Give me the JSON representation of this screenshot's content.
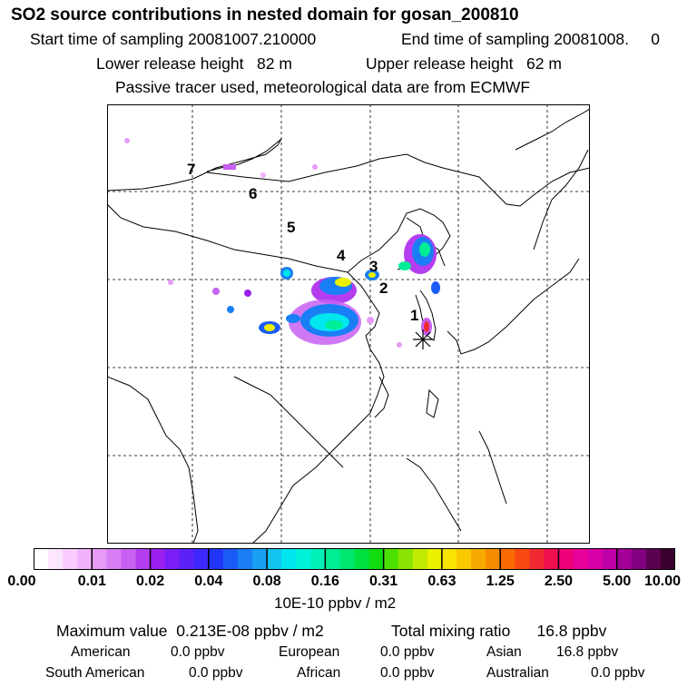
{
  "header": {
    "title": "SO2 source contributions in nested domain for gosan_200810",
    "start_label": "Start time of sampling 20081007.210000",
    "end_label": "End time of sampling 20081008.     0",
    "lower_label": "Lower release height   82 m",
    "upper_label": "Upper release height   62 m",
    "tracer_note": "Passive tracer used, meteorological data are from ECMWF"
  },
  "map": {
    "region_labels": [
      "1",
      "2",
      "3",
      "4",
      "5",
      "6",
      "7"
    ],
    "receptor_marker": "asterisk-marker"
  },
  "colorbar": {
    "ticks": [
      "0.00",
      "0.01",
      "0.02",
      "0.04",
      "0.08",
      "0.16",
      "0.31",
      "0.63",
      "1.25",
      "2.50",
      "5.00",
      "10.00"
    ],
    "unit": "10E-10 ppbv / m2",
    "colors": [
      "#ffffff",
      "#fce6ff",
      "#f8ccfe",
      "#f1b2fd",
      "#e89af9",
      "#d77ef4",
      "#c860f2",
      "#b43eef",
      "#9d1ff0",
      "#7a1ff5",
      "#5a22f8",
      "#3b28fa",
      "#2236fa",
      "#1b5bf7",
      "#1a7ef5",
      "#1aa0f3",
      "#12c4f0",
      "#00e6ee",
      "#00f2d8",
      "#00f0b8",
      "#00ee96",
      "#00e870",
      "#00e040",
      "#10dc10",
      "#4ce000",
      "#88e400",
      "#c0ea00",
      "#eaf000",
      "#f8e400",
      "#f8c800",
      "#f8aa00",
      "#f88c00",
      "#f86a00",
      "#f84a10",
      "#f02a30",
      "#f01050",
      "#f0007a",
      "#e8009a",
      "#d800a8",
      "#c000a8",
      "#a40098",
      "#800080",
      "#5c0050",
      "#3a0030"
    ]
  },
  "stats": {
    "max_label": "Maximum value  0.213E-08 ppbv / m2",
    "total_label": "Total mixing ratio      16.8 ppbv",
    "american": "American",
    "american_val": "0.0 ppbv",
    "european": "European",
    "european_val": "0.0 ppbv",
    "asian": "Asian",
    "asian_val": "16.8 ppbv",
    "south_american": "South American",
    "south_american_val": "0.0 ppbv",
    "african": "African",
    "african_val": "0.0 ppbv",
    "australian": "Australian",
    "australian_val": "0.0 ppbv"
  }
}
